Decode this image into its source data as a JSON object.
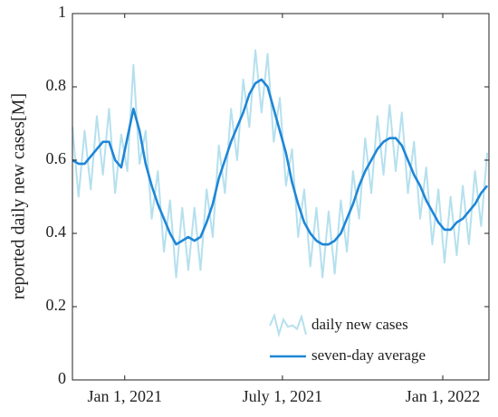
{
  "chart_data": {
    "type": "line",
    "ylabel": "reported daily new cases[M]",
    "x": [
      "2020-11-02",
      "2020-11-09",
      "2020-11-16",
      "2020-11-23",
      "2020-11-30",
      "2020-12-07",
      "2020-12-14",
      "2020-12-21",
      "2020-12-28",
      "2021-01-04",
      "2021-01-11",
      "2021-01-18",
      "2021-01-25",
      "2021-02-01",
      "2021-02-08",
      "2021-02-15",
      "2021-02-22",
      "2021-03-01",
      "2021-03-08",
      "2021-03-15",
      "2021-03-22",
      "2021-03-29",
      "2021-04-05",
      "2021-04-12",
      "2021-04-19",
      "2021-04-26",
      "2021-05-03",
      "2021-05-10",
      "2021-05-17",
      "2021-05-24",
      "2021-05-31",
      "2021-06-07",
      "2021-06-14",
      "2021-06-21",
      "2021-06-28",
      "2021-07-05",
      "2021-07-12",
      "2021-07-19",
      "2021-07-26",
      "2021-08-02",
      "2021-08-09",
      "2021-08-16",
      "2021-08-23",
      "2021-08-30",
      "2021-09-06",
      "2021-09-13",
      "2021-09-20",
      "2021-09-27",
      "2021-10-04",
      "2021-10-11",
      "2021-10-18",
      "2021-10-25",
      "2021-11-01",
      "2021-11-08",
      "2021-11-15",
      "2021-11-22",
      "2021-11-29",
      "2021-12-06",
      "2021-12-13",
      "2021-12-20",
      "2021-12-27",
      "2022-01-03",
      "2022-01-10",
      "2022-01-17",
      "2022-01-24",
      "2022-01-31",
      "2022-02-07",
      "2022-02-14",
      "2022-02-21"
    ],
    "series": [
      {
        "name": "daily new cases",
        "color": "#b5e0ee",
        "width": 2,
        "values": [
          0.69,
          0.5,
          0.68,
          0.52,
          0.72,
          0.56,
          0.74,
          0.51,
          0.67,
          0.57,
          0.86,
          0.59,
          0.68,
          0.44,
          0.57,
          0.35,
          0.49,
          0.28,
          0.47,
          0.3,
          0.47,
          0.3,
          0.52,
          0.39,
          0.64,
          0.51,
          0.74,
          0.6,
          0.82,
          0.69,
          0.9,
          0.73,
          0.89,
          0.65,
          0.77,
          0.53,
          0.63,
          0.39,
          0.52,
          0.31,
          0.47,
          0.28,
          0.46,
          0.29,
          0.49,
          0.35,
          0.57,
          0.44,
          0.66,
          0.51,
          0.72,
          0.56,
          0.75,
          0.57,
          0.73,
          0.51,
          0.65,
          0.44,
          0.58,
          0.37,
          0.52,
          0.32,
          0.5,
          0.34,
          0.53,
          0.37,
          0.57,
          0.42,
          0.62
        ]
      },
      {
        "name": "seven-day average",
        "color": "#1f86d6",
        "width": 2.6,
        "values": [
          0.6,
          0.59,
          0.59,
          0.61,
          0.63,
          0.65,
          0.65,
          0.6,
          0.58,
          0.66,
          0.74,
          0.68,
          0.59,
          0.53,
          0.48,
          0.44,
          0.4,
          0.37,
          0.38,
          0.39,
          0.38,
          0.39,
          0.43,
          0.48,
          0.55,
          0.6,
          0.65,
          0.69,
          0.73,
          0.78,
          0.81,
          0.82,
          0.8,
          0.74,
          0.68,
          0.62,
          0.54,
          0.48,
          0.43,
          0.4,
          0.38,
          0.37,
          0.37,
          0.38,
          0.4,
          0.44,
          0.48,
          0.53,
          0.57,
          0.6,
          0.63,
          0.65,
          0.66,
          0.66,
          0.64,
          0.6,
          0.56,
          0.53,
          0.49,
          0.46,
          0.43,
          0.41,
          0.41,
          0.43,
          0.44,
          0.46,
          0.48,
          0.51,
          0.53
        ]
      }
    ],
    "xlim": [
      "2020-11-02",
      "2022-02-23"
    ],
    "xticks": [
      {
        "value": "2021-01-01",
        "label": "Jan 1, 2021"
      },
      {
        "value": "2021-07-01",
        "label": "July 1, 2021"
      },
      {
        "value": "2022-01-01",
        "label": "Jan 1, 2022"
      }
    ],
    "ylim": [
      0,
      1
    ],
    "yticks": [
      0,
      0.2,
      0.4,
      0.6,
      0.8,
      1
    ],
    "legend": "lower right"
  }
}
